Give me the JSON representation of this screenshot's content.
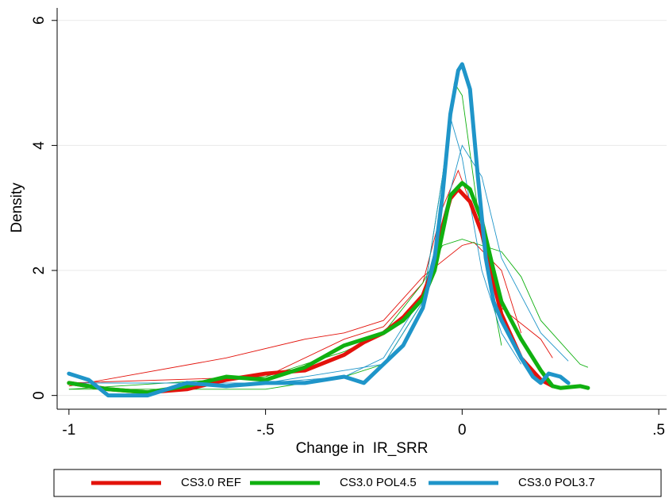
{
  "chart_data": {
    "type": "line",
    "xlabel": "Change in  IR_SRR",
    "ylabel": "Density",
    "xlim": [
      -1.03,
      0.52
    ],
    "ylim": [
      -0.22,
      6.2
    ],
    "xticks": [
      {
        "value": -1,
        "label": "-1"
      },
      {
        "value": -0.5,
        "label": "-.5"
      },
      {
        "value": 0,
        "label": "0"
      },
      {
        "value": 0.5,
        "label": ".5"
      }
    ],
    "yticks": [
      0,
      2,
      4,
      6
    ],
    "grid": true,
    "legend": "bottom",
    "background_curves": [
      {
        "color": "#e3120b",
        "x": [
          -1,
          -0.5,
          -0.3,
          -0.2,
          -0.1,
          -0.05,
          -0.01,
          0.05,
          0.1,
          0.2,
          0.23
        ],
        "values": [
          0.2,
          0.3,
          0.9,
          1.1,
          1.8,
          3.0,
          3.6,
          2.6,
          1.4,
          0.9,
          0.6
        ]
      },
      {
        "color": "#e3120b",
        "x": [
          -1,
          -0.6,
          -0.4,
          -0.3,
          -0.2,
          -0.1,
          0,
          0.03,
          0.1,
          0.15
        ],
        "values": [
          0.15,
          0.6,
          0.9,
          1.0,
          1.2,
          1.9,
          2.4,
          2.45,
          2.0,
          1.0
        ]
      },
      {
        "color": "#10b010",
        "x": [
          -1,
          -0.5,
          -0.3,
          -0.2,
          -0.1,
          -0.05,
          -0.02,
          0,
          0.05,
          0.1
        ],
        "values": [
          0.1,
          0.1,
          0.3,
          0.5,
          1.5,
          3.5,
          5.0,
          4.8,
          2.5,
          0.8
        ]
      },
      {
        "color": "#10b010",
        "x": [
          -1,
          -0.5,
          -0.3,
          -0.2,
          -0.1,
          -0.05,
          0,
          0.05,
          0.1,
          0.15,
          0.2,
          0.3,
          0.32
        ],
        "values": [
          0.1,
          0.3,
          0.7,
          1.0,
          1.8,
          2.4,
          2.5,
          2.4,
          2.3,
          1.9,
          1.2,
          0.5,
          0.45
        ]
      },
      {
        "color": "#1f95c9",
        "x": [
          -1,
          -0.5,
          -0.2,
          -0.1,
          -0.05,
          -0.03,
          0,
          0.05,
          0.1,
          0.15
        ],
        "values": [
          0.2,
          0.2,
          0.5,
          1.5,
          3.5,
          4.45,
          3.8,
          2.0,
          1.0,
          0.5
        ]
      },
      {
        "color": "#1f95c9",
        "x": [
          -1,
          -0.5,
          -0.3,
          -0.2,
          -0.1,
          0,
          0.05,
          0.1,
          0.2,
          0.27
        ],
        "values": [
          0.2,
          0.2,
          0.3,
          0.6,
          1.6,
          4.0,
          3.5,
          2.2,
          1.0,
          0.55
        ]
      }
    ],
    "series": [
      {
        "name": "CS3.0 REF",
        "color": "#e3120b",
        "x": [
          -1,
          -0.9,
          -0.8,
          -0.7,
          -0.6,
          -0.5,
          -0.4,
          -0.3,
          -0.25,
          -0.2,
          -0.15,
          -0.1,
          -0.07,
          -0.05,
          -0.03,
          -0.01,
          0.02,
          0.05,
          0.08,
          0.1,
          0.15,
          0.2,
          0.23
        ],
        "values": [
          0.2,
          0.1,
          0.05,
          0.1,
          0.25,
          0.35,
          0.4,
          0.65,
          0.85,
          1.0,
          1.25,
          1.6,
          2.1,
          2.7,
          3.15,
          3.3,
          3.1,
          2.6,
          1.8,
          1.3,
          0.6,
          0.25,
          0.15
        ]
      },
      {
        "name": "CS3.0 POL4.5",
        "color": "#10b010",
        "x": [
          -1,
          -0.9,
          -0.8,
          -0.7,
          -0.6,
          -0.5,
          -0.4,
          -0.3,
          -0.25,
          -0.2,
          -0.15,
          -0.1,
          -0.07,
          -0.05,
          -0.03,
          0,
          0.02,
          0.05,
          0.08,
          0.1,
          0.15,
          0.2,
          0.23,
          0.25,
          0.3,
          0.32
        ],
        "values": [
          0.2,
          0.1,
          0.05,
          0.15,
          0.3,
          0.25,
          0.45,
          0.8,
          0.9,
          1.0,
          1.2,
          1.55,
          2.0,
          2.6,
          3.2,
          3.4,
          3.3,
          2.8,
          2.0,
          1.5,
          0.9,
          0.4,
          0.15,
          0.12,
          0.15,
          0.12
        ]
      },
      {
        "name": "CS3.0 POL3.7",
        "color": "#1f95c9",
        "x": [
          -1,
          -0.95,
          -0.9,
          -0.8,
          -0.7,
          -0.6,
          -0.5,
          -0.4,
          -0.3,
          -0.25,
          -0.2,
          -0.15,
          -0.1,
          -0.07,
          -0.05,
          -0.03,
          -0.01,
          0,
          0.02,
          0.04,
          0.06,
          0.08,
          0.1,
          0.15,
          0.18,
          0.2,
          0.22,
          0.25,
          0.27
        ],
        "values": [
          0.35,
          0.25,
          0,
          0,
          0.2,
          0.15,
          0.2,
          0.2,
          0.3,
          0.2,
          0.5,
          0.8,
          1.4,
          2.2,
          3.2,
          4.5,
          5.2,
          5.3,
          4.9,
          3.5,
          2.2,
          1.5,
          1.2,
          0.6,
          0.3,
          0.2,
          0.35,
          0.3,
          0.2
        ]
      }
    ]
  }
}
